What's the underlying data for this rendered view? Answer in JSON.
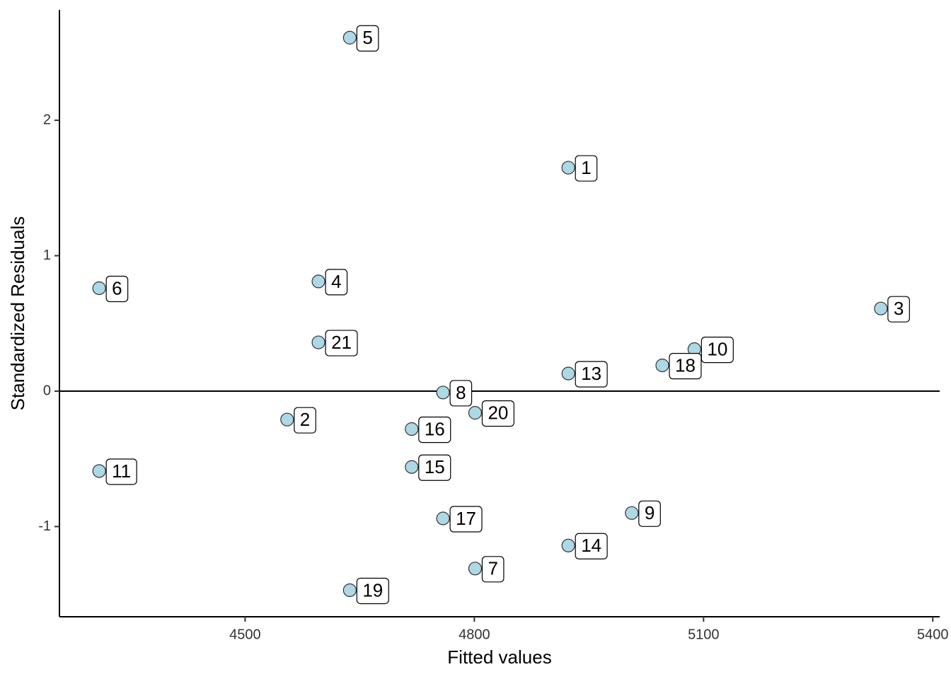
{
  "chart_data": {
    "type": "scatter",
    "x_label": "Fitted values",
    "y_label": "Standardized Residuals",
    "labels": [
      "1",
      "2",
      "3",
      "4",
      "5",
      "6",
      "7",
      "8",
      "9",
      "10",
      "11",
      "13",
      "14",
      "15",
      "16",
      "17",
      "18",
      "19",
      "20",
      "21"
    ],
    "x": [
      4923,
      4555,
      5332,
      4596,
      4637,
      4309,
      4801,
      4759,
      5006,
      5088,
      4309,
      4923,
      4923,
      4718,
      4718,
      4759,
      5046,
      4637,
      4801,
      4596
    ],
    "values": [
      1.65,
      -0.21,
      0.61,
      0.81,
      2.61,
      0.76,
      -1.31,
      -0.01,
      -0.9,
      0.31,
      -0.59,
      0.13,
      -1.14,
      -0.56,
      -0.28,
      -0.94,
      0.19,
      -1.47,
      -0.16,
      0.36
    ],
    "color": "#add8e6",
    "hline": 0,
    "xlim": [
      4257,
      5409
    ],
    "xticks": [
      4500,
      4800,
      5100,
      5400
    ],
    "ylim": [
      -1.666,
      2.815
    ],
    "yticks": [
      -1,
      0,
      1,
      2
    ]
  }
}
